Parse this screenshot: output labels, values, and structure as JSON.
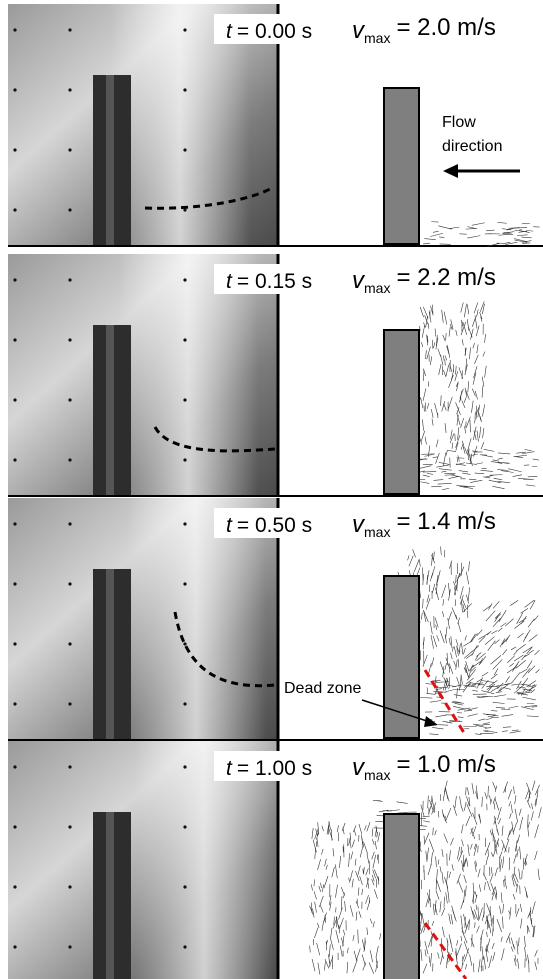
{
  "panels": [
    {
      "time_label": {
        "var": "t",
        "text": "= 0.00 s"
      },
      "vmax_label": {
        "var": "v",
        "sub": "max",
        "text": "= 2.0 m/s"
      }
    },
    {
      "time_label": {
        "var": "t",
        "text": "= 0.15 s"
      },
      "vmax_label": {
        "var": "v",
        "sub": "max",
        "text": "= 2.2 m/s"
      }
    },
    {
      "time_label": {
        "var": "t",
        "text": "= 0.50 s"
      },
      "vmax_label": {
        "var": "v",
        "sub": "max",
        "text": "= 1.4 m/s"
      }
    },
    {
      "time_label": {
        "var": "t",
        "text": "= 1.00 s"
      },
      "vmax_label": {
        "var": "v",
        "sub": "max",
        "text": "= 1.0 m/s"
      }
    }
  ],
  "annotations": {
    "flow_direction": [
      "Flow",
      "direction"
    ],
    "dead_zone": "Dead zone"
  }
}
